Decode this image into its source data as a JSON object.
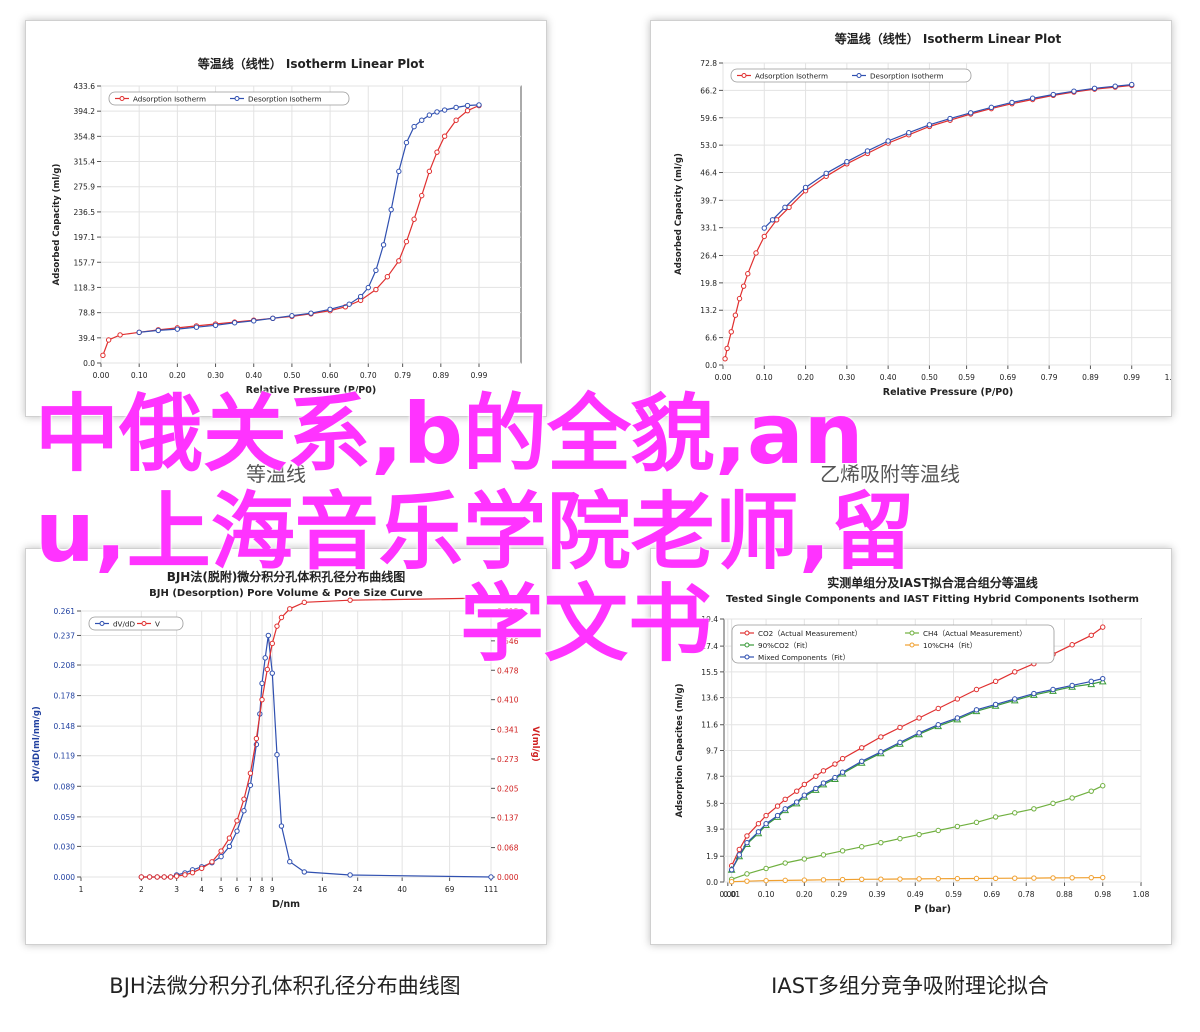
{
  "charts": [
    {
      "id": "isotherm-left",
      "type": "line",
      "title": "等温线（线性） Isotherm Linear Plot",
      "xlabel": "Relative Pressure (P/P0)",
      "ylabel": "Adsorbed Capacity (ml/g)",
      "x_ticks": [
        "0.00",
        "0.10",
        "0.20",
        "0.30",
        "0.40",
        "0.50",
        "0.60",
        "0.70",
        "0.79",
        "0.89",
        "0.99"
      ],
      "y_ticks": [
        "0.0",
        "39.4",
        "78.8",
        "118.3",
        "157.7",
        "197.1",
        "236.5",
        "275.9",
        "315.4",
        "354.8",
        "394.2",
        "433.6"
      ],
      "xlim": [
        0,
        1.1
      ],
      "ylim": [
        0,
        433.6
      ],
      "legend": [
        "Adsorption Isotherm",
        "Desorption Isotherm"
      ],
      "colors": [
        "#e03030",
        "#3050b0"
      ],
      "series": [
        {
          "name": "Adsorption Isotherm",
          "x": [
            0.005,
            0.02,
            0.05,
            0.1,
            0.15,
            0.2,
            0.25,
            0.3,
            0.35,
            0.4,
            0.45,
            0.5,
            0.55,
            0.6,
            0.64,
            0.68,
            0.72,
            0.75,
            0.78,
            0.8,
            0.82,
            0.84,
            0.86,
            0.88,
            0.9,
            0.93,
            0.96,
            0.99
          ],
          "y": [
            12,
            36,
            44,
            48,
            52,
            55,
            58,
            61,
            64,
            67,
            70,
            73,
            77,
            82,
            88,
            98,
            115,
            135,
            160,
            190,
            225,
            262,
            300,
            330,
            355,
            380,
            395,
            403
          ]
        },
        {
          "name": "Desorption Isotherm",
          "x": [
            0.99,
            0.96,
            0.93,
            0.9,
            0.88,
            0.86,
            0.84,
            0.82,
            0.8,
            0.78,
            0.76,
            0.74,
            0.72,
            0.7,
            0.68,
            0.65,
            0.6,
            0.55,
            0.5,
            0.45,
            0.4,
            0.35,
            0.3,
            0.25,
            0.2,
            0.15,
            0.1
          ],
          "y": [
            404,
            403,
            400,
            396,
            393,
            388,
            380,
            370,
            345,
            300,
            240,
            185,
            145,
            118,
            104,
            92,
            84,
            78,
            74,
            70,
            66,
            63,
            59,
            56,
            53,
            51,
            48
          ]
        }
      ]
    },
    {
      "id": "isotherm-right",
      "type": "line",
      "title": "等温线（线性） Isotherm Linear Plot",
      "xlabel": "Relative Pressure (P/P0)",
      "ylabel": "Adsorbed Capacity (ml/g)",
      "x_ticks": [
        "0.00",
        "0.10",
        "0.20",
        "0.30",
        "0.40",
        "0.50",
        "0.59",
        "0.69",
        "0.79",
        "0.89",
        "0.99",
        "1.09"
      ],
      "y_ticks": [
        "0.0",
        "6.6",
        "13.2",
        "19.8",
        "26.4",
        "33.1",
        "39.7",
        "46.4",
        "53.0",
        "59.6",
        "66.2",
        "72.8"
      ],
      "xlim": [
        0,
        1.09
      ],
      "ylim": [
        0,
        72.8
      ],
      "legend": [
        "Adsorption Isotherm",
        "Desorption Isotherm"
      ],
      "colors": [
        "#e03030",
        "#3050b0"
      ],
      "series": [
        {
          "name": "Adsorption Isotherm",
          "x": [
            0.005,
            0.01,
            0.02,
            0.03,
            0.04,
            0.05,
            0.06,
            0.08,
            0.1,
            0.13,
            0.16,
            0.2,
            0.25,
            0.3,
            0.35,
            0.4,
            0.45,
            0.5,
            0.55,
            0.6,
            0.65,
            0.7,
            0.75,
            0.8,
            0.85,
            0.9,
            0.95,
            0.99
          ],
          "y": [
            1.5,
            4,
            8,
            12,
            16,
            19,
            22,
            27,
            31,
            35,
            38,
            42,
            45.5,
            48.5,
            51,
            53.5,
            55.5,
            57.5,
            59,
            60.5,
            61.8,
            63,
            64,
            65,
            65.8,
            66.5,
            67,
            67.4
          ]
        },
        {
          "name": "Desorption Isotherm",
          "x": [
            0.99,
            0.95,
            0.9,
            0.85,
            0.8,
            0.75,
            0.7,
            0.65,
            0.6,
            0.55,
            0.5,
            0.45,
            0.4,
            0.35,
            0.3,
            0.25,
            0.2,
            0.15,
            0.12,
            0.1
          ],
          "y": [
            67.6,
            67.2,
            66.7,
            66,
            65.2,
            64.3,
            63.3,
            62.1,
            60.8,
            59.4,
            57.9,
            56,
            54,
            51.6,
            49,
            46.2,
            42.8,
            38,
            35,
            33
          ]
        }
      ]
    },
    {
      "id": "bjh",
      "type": "line",
      "title": "BJH法(脱附)微分积分孔体积孔径分布曲线图",
      "subtitle": "BJH (Desorption) Pore Volume & Pore Size Curve",
      "xlabel": "D/nm",
      "ylabel": "dV/dD(ml/nm/g)",
      "ylabel_right": "V(ml/g)",
      "x_ticks": [
        "1",
        "2",
        "3",
        "4",
        "5",
        "6",
        "7",
        "8",
        "9",
        "16",
        "24",
        "40",
        "69",
        "111"
      ],
      "y_ticks": [
        "0.000",
        "0.030",
        "0.059",
        "0.089",
        "0.119",
        "0.148",
        "0.178",
        "0.208",
        "0.237",
        "0.261"
      ],
      "y_ticks_right": [
        "0.000",
        "0.068",
        "0.137",
        "0.205",
        "0.273",
        "0.341",
        "0.410",
        "0.478",
        "0.546",
        "0.615"
      ],
      "xscale": "log",
      "xlim": [
        1,
        111
      ],
      "ylim": [
        0,
        0.261
      ],
      "ylim_right": [
        0,
        0.615
      ],
      "legend": [
        "dV/dD",
        "V"
      ],
      "colors": [
        "#3050b0",
        "#e03030"
      ],
      "series": [
        {
          "name": "dV/dD",
          "axis": "left",
          "x": [
            2,
            2.2,
            2.4,
            2.6,
            2.8,
            3,
            3.3,
            3.6,
            4,
            4.5,
            5,
            5.5,
            6,
            6.5,
            7,
            7.5,
            7.8,
            8,
            8.3,
            8.6,
            9,
            9.5,
            10,
            11,
            13,
            22,
            111
          ],
          "y": [
            0,
            0,
            0,
            0,
            0,
            0.002,
            0.004,
            0.007,
            0.01,
            0.014,
            0.02,
            0.03,
            0.045,
            0.065,
            0.09,
            0.13,
            0.16,
            0.19,
            0.215,
            0.237,
            0.2,
            0.12,
            0.05,
            0.015,
            0.005,
            0.002,
            0
          ]
        },
        {
          "name": "V",
          "axis": "right",
          "x": [
            2,
            2.2,
            2.4,
            2.6,
            2.8,
            3,
            3.3,
            3.6,
            4,
            4.5,
            5,
            5.5,
            6,
            6.5,
            7,
            7.5,
            8,
            8.5,
            9,
            9.5,
            10,
            11,
            13,
            22,
            111
          ],
          "y": [
            0,
            0,
            0,
            0,
            0,
            0.002,
            0.005,
            0.01,
            0.02,
            0.035,
            0.06,
            0.09,
            0.13,
            0.18,
            0.24,
            0.32,
            0.41,
            0.48,
            0.54,
            0.58,
            0.6,
            0.62,
            0.635,
            0.64,
            0.645
          ]
        }
      ]
    },
    {
      "id": "iast",
      "type": "line",
      "title": "实测单组分及IAST拟合混合组分等温线",
      "subtitle": "Tested Single Components and IAST Fitting Hybrid Components Isotherm",
      "xlabel": "P (bar)",
      "ylabel": "Adsorption Capacites (ml/g)",
      "x_ticks": [
        "0.00",
        "0.01",
        "0.10",
        "0.20",
        "0.29",
        "0.39",
        "0.49",
        "0.59",
        "0.69",
        "0.78",
        "0.88",
        "0.98",
        "1.08"
      ],
      "y_ticks": [
        "0.0",
        "1.9",
        "3.9",
        "5.8",
        "7.8",
        "9.7",
        "11.6",
        "13.6",
        "15.5",
        "17.4",
        "19.4"
      ],
      "xlim": [
        -0.01,
        1.08
      ],
      "ylim": [
        0,
        19.4
      ],
      "legend": [
        "CO2（Actual Measurement）",
        "CH4（Actual Measurement）",
        "90%CO2（Fit）",
        "10%CH4（Fit）",
        "Mixed Components（Fit）"
      ],
      "colors": [
        "#e03030",
        "#70b040",
        "#3a9a3a",
        "#f0a030",
        "#3050b0"
      ],
      "series": [
        {
          "name": "CO2（Actual Measurement）",
          "x": [
            0.01,
            0.03,
            0.05,
            0.08,
            0.1,
            0.13,
            0.15,
            0.18,
            0.2,
            0.23,
            0.25,
            0.28,
            0.3,
            0.35,
            0.4,
            0.45,
            0.5,
            0.55,
            0.6,
            0.65,
            0.7,
            0.75,
            0.8,
            0.85,
            0.9,
            0.95,
            0.98
          ],
          "y": [
            1.2,
            2.4,
            3.4,
            4.3,
            4.9,
            5.6,
            6.1,
            6.7,
            7.2,
            7.8,
            8.2,
            8.7,
            9.1,
            9.9,
            10.7,
            11.4,
            12.1,
            12.8,
            13.5,
            14.2,
            14.8,
            15.5,
            16.1,
            16.8,
            17.5,
            18.2,
            18.8
          ]
        },
        {
          "name": "CH4（Actual Measurement）",
          "x": [
            0.01,
            0.05,
            0.1,
            0.15,
            0.2,
            0.25,
            0.3,
            0.35,
            0.4,
            0.45,
            0.5,
            0.55,
            0.6,
            0.65,
            0.7,
            0.75,
            0.8,
            0.85,
            0.9,
            0.95,
            0.98
          ],
          "y": [
            0.2,
            0.6,
            1.0,
            1.4,
            1.7,
            2.0,
            2.3,
            2.6,
            2.9,
            3.2,
            3.5,
            3.8,
            4.1,
            4.4,
            4.8,
            5.1,
            5.4,
            5.8,
            6.2,
            6.7,
            7.1
          ]
        },
        {
          "name": "90%CO2（Fit）",
          "x": [
            0.01,
            0.03,
            0.05,
            0.08,
            0.1,
            0.13,
            0.15,
            0.18,
            0.2,
            0.23,
            0.25,
            0.28,
            0.3,
            0.35,
            0.4,
            0.45,
            0.5,
            0.55,
            0.6,
            0.65,
            0.7,
            0.75,
            0.8,
            0.85,
            0.9,
            0.95,
            0.98
          ],
          "y": [
            0.9,
            1.9,
            2.8,
            3.6,
            4.2,
            4.8,
            5.3,
            5.8,
            6.3,
            6.8,
            7.2,
            7.6,
            8.0,
            8.8,
            9.5,
            10.2,
            10.9,
            11.5,
            12.0,
            12.6,
            13.0,
            13.4,
            13.8,
            14.1,
            14.4,
            14.6,
            14.8
          ]
        },
        {
          "name": "10%CH4（Fit）",
          "x": [
            0.01,
            0.05,
            0.1,
            0.15,
            0.2,
            0.25,
            0.3,
            0.35,
            0.4,
            0.45,
            0.5,
            0.55,
            0.6,
            0.65,
            0.7,
            0.75,
            0.8,
            0.85,
            0.9,
            0.95,
            0.98
          ],
          "y": [
            0.02,
            0.06,
            0.1,
            0.12,
            0.14,
            0.16,
            0.18,
            0.2,
            0.21,
            0.22,
            0.23,
            0.24,
            0.25,
            0.26,
            0.27,
            0.28,
            0.29,
            0.3,
            0.31,
            0.32,
            0.33
          ]
        },
        {
          "name": "Mixed Components（Fit）",
          "x": [
            0.01,
            0.03,
            0.05,
            0.08,
            0.1,
            0.13,
            0.15,
            0.18,
            0.2,
            0.23,
            0.25,
            0.28,
            0.3,
            0.35,
            0.4,
            0.45,
            0.5,
            0.55,
            0.6,
            0.65,
            0.7,
            0.75,
            0.8,
            0.85,
            0.9,
            0.95,
            0.98
          ],
          "y": [
            0.9,
            2.0,
            2.9,
            3.7,
            4.3,
            4.9,
            5.4,
            5.9,
            6.4,
            6.9,
            7.3,
            7.7,
            8.1,
            8.9,
            9.6,
            10.3,
            11.0,
            11.6,
            12.1,
            12.7,
            13.1,
            13.5,
            13.9,
            14.2,
            14.5,
            14.8,
            15.0
          ]
        }
      ]
    }
  ],
  "captions": {
    "under_top_left": "等温线",
    "under_top_right": "乙烯吸附等温线",
    "bottom_left": "BJH法微分积分孔体积孔径分布曲线图",
    "bottom_right": "IAST多组分竞争吸附理论拟合"
  },
  "overlay": {
    "line1": "中俄关系,b的全貌,an",
    "line2": "u,上海音乐学院老师,留",
    "line3": "学文书",
    "color": "#ff33ff"
  }
}
